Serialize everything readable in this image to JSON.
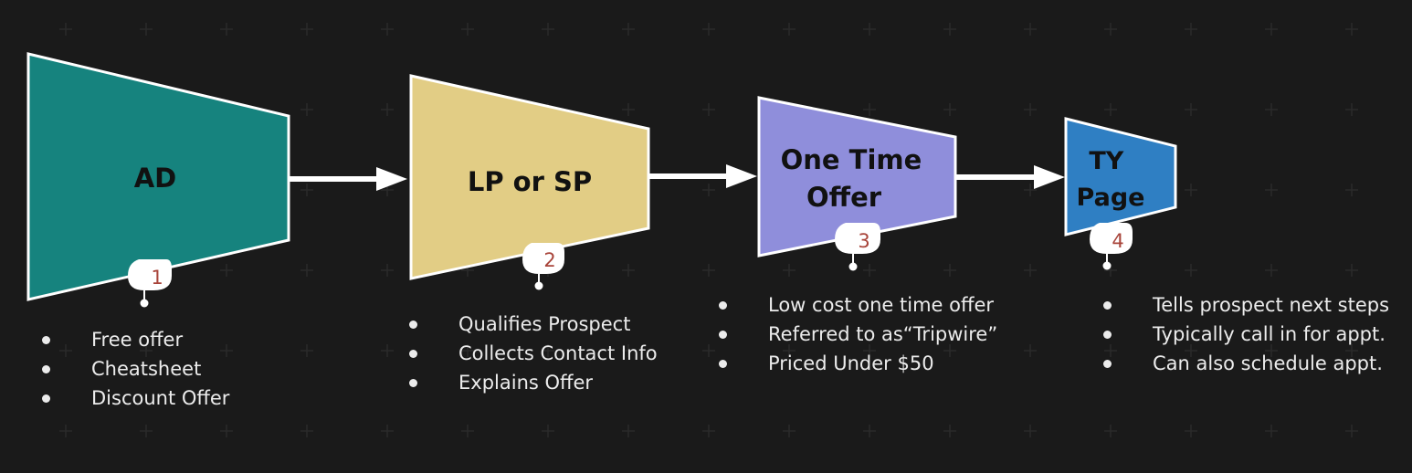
{
  "stages": [
    {
      "title_lines": [
        "AD"
      ],
      "number": "1",
      "color": "#16837e",
      "bullets": [
        "Free offer",
        "Cheatsheet",
        "Discount Offer"
      ]
    },
    {
      "title_lines": [
        "LP or SP"
      ],
      "number": "2",
      "color": "#e2cd85",
      "bullets": [
        "Qualifies Prospect",
        "Collects Contact Info",
        "Explains Offer"
      ]
    },
    {
      "title_lines": [
        "One Time",
        "Offer"
      ],
      "number": "3",
      "color": "#8f8edb",
      "bullets": [
        "Low cost one time offer",
        "Referred to as“Tripwire”",
        "Priced Under $50"
      ]
    },
    {
      "title_lines": [
        "TY",
        "Page"
      ],
      "number": "4",
      "color": "#2f7fc3",
      "bullets": [
        "Tells prospect next steps",
        "Typically call in for appt.",
        "Can also schedule appt."
      ]
    }
  ],
  "colors": {
    "background": "#1a1a1a",
    "outline": "#ffffff",
    "arrow": "#ffffff",
    "number_text": "#a8443a",
    "title_text": "#111111",
    "bullet_text": "#ececec"
  }
}
